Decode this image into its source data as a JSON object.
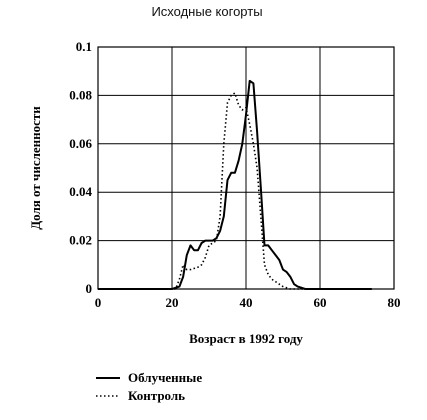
{
  "chart_data": {
    "type": "line",
    "title": "Исходные когорты",
    "xlabel": "Возраст в 1992 году",
    "ylabel": "Доля от численности",
    "xlim": [
      0,
      80
    ],
    "ylim": [
      0,
      0.1
    ],
    "x_ticks": [
      0,
      20,
      40,
      60,
      80
    ],
    "y_ticks": [
      0,
      0.02,
      0.04,
      0.06,
      0.08,
      0.1
    ],
    "x_tick_labels": [
      "0",
      "20",
      "40",
      "60",
      "80"
    ],
    "y_tick_labels": [
      "0",
      "0.02",
      "0.04",
      "0.06",
      "0.08",
      "0.1"
    ],
    "grid": true,
    "legend_position": "bottom-left",
    "series": [
      {
        "name": "Облученные",
        "style": "solid",
        "color": "#000000",
        "points": [
          [
            0,
            0
          ],
          [
            20,
            0
          ],
          [
            22,
            0.001
          ],
          [
            23,
            0.005
          ],
          [
            24,
            0.014
          ],
          [
            25,
            0.018
          ],
          [
            26,
            0.016
          ],
          [
            27,
            0.016
          ],
          [
            28,
            0.019
          ],
          [
            29,
            0.02
          ],
          [
            30,
            0.02
          ],
          [
            31,
            0.02
          ],
          [
            32,
            0.021
          ],
          [
            33,
            0.024
          ],
          [
            34,
            0.03
          ],
          [
            35,
            0.045
          ],
          [
            36,
            0.048
          ],
          [
            37,
            0.048
          ],
          [
            38,
            0.053
          ],
          [
            39,
            0.06
          ],
          [
            40,
            0.072
          ],
          [
            41,
            0.086
          ],
          [
            42,
            0.085
          ],
          [
            43,
            0.065
          ],
          [
            44,
            0.042
          ],
          [
            45,
            0.018
          ],
          [
            46,
            0.018
          ],
          [
            47,
            0.016
          ],
          [
            48,
            0.014
          ],
          [
            49,
            0.012
          ],
          [
            50,
            0.008
          ],
          [
            51,
            0.007
          ],
          [
            52,
            0.005
          ],
          [
            53,
            0.002
          ],
          [
            54,
            0.001
          ],
          [
            56,
            0
          ],
          [
            74,
            0
          ]
        ]
      },
      {
        "name": "Контроль",
        "style": "dotted",
        "color": "#000000",
        "points": [
          [
            0,
            0
          ],
          [
            21,
            0
          ],
          [
            22,
            0.004
          ],
          [
            23,
            0.01
          ],
          [
            24,
            0.008
          ],
          [
            25,
            0.008
          ],
          [
            27,
            0.009
          ],
          [
            28,
            0.01
          ],
          [
            29,
            0.013
          ],
          [
            30,
            0.018
          ],
          [
            31,
            0.019
          ],
          [
            32,
            0.02
          ],
          [
            33,
            0.03
          ],
          [
            34,
            0.06
          ],
          [
            35,
            0.077
          ],
          [
            36,
            0.08
          ],
          [
            37,
            0.081
          ],
          [
            38,
            0.076
          ],
          [
            39,
            0.074
          ],
          [
            40,
            0.075
          ],
          [
            41,
            0.068
          ],
          [
            42,
            0.06
          ],
          [
            43,
            0.05
          ],
          [
            44,
            0.03
          ],
          [
            45,
            0.01
          ],
          [
            46,
            0.006
          ],
          [
            47,
            0.004
          ],
          [
            48,
            0.003
          ],
          [
            49,
            0.002
          ],
          [
            50,
            0.001
          ],
          [
            52,
            0
          ],
          [
            74,
            0
          ]
        ]
      }
    ]
  }
}
